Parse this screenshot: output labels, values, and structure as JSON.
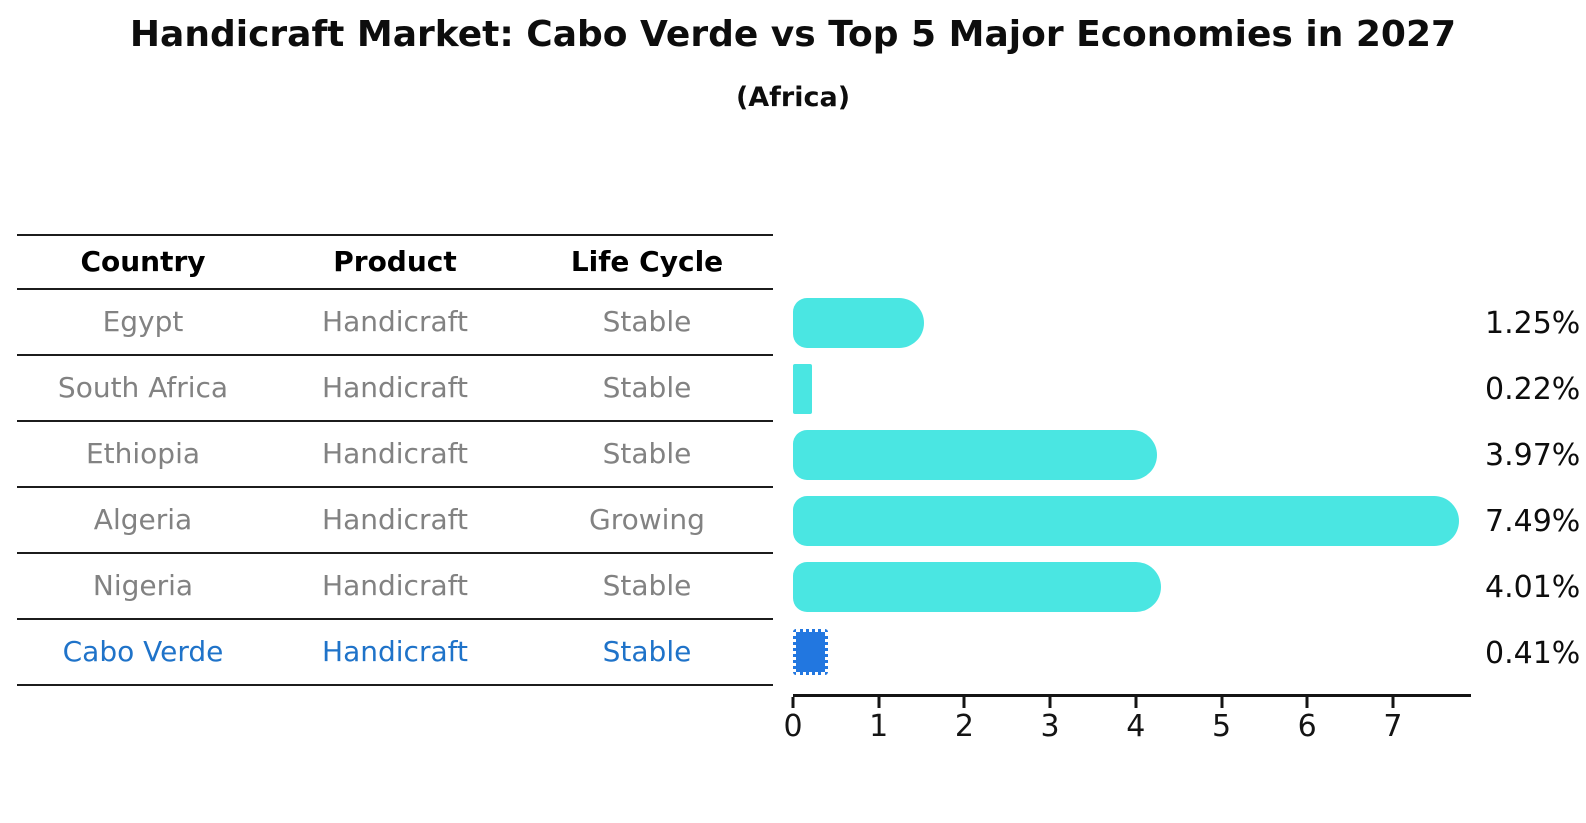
{
  "title": "Handicraft Market: Cabo Verde vs Top 5 Major Economies in 2027",
  "subtitle": "(Africa)",
  "table": {
    "headers": [
      "Country",
      "Product",
      "Life Cycle"
    ]
  },
  "chart_data": {
    "type": "bar",
    "orientation": "horizontal",
    "title": "Handicraft Market: Cabo Verde vs Top 5 Major Economies in 2027 (Africa)",
    "xlabel": "",
    "ylabel": "",
    "grid": false,
    "legend": false,
    "xlim": [
      0,
      7.87
    ],
    "xticks": [
      "0",
      "1",
      "2",
      "3",
      "4",
      "5",
      "6",
      "7"
    ],
    "categories": [
      "Egypt",
      "South Africa",
      "Ethiopia",
      "Algeria",
      "Nigeria",
      "Cabo Verde"
    ],
    "values": [
      1.25,
      0.22,
      3.97,
      7.49,
      4.01,
      0.41
    ],
    "value_labels": [
      "1.25%",
      "0.22%",
      "3.97%",
      "7.49%",
      "4.01%",
      "0.41%"
    ],
    "rows": [
      {
        "country": "Egypt",
        "product": "Handicraft",
        "life_cycle": "Stable",
        "value": 1.25,
        "value_label": "1.25%",
        "highlight": false
      },
      {
        "country": "South Africa",
        "product": "Handicraft",
        "life_cycle": "Stable",
        "value": 0.22,
        "value_label": "0.22%",
        "highlight": false
      },
      {
        "country": "Ethiopia",
        "product": "Handicraft",
        "life_cycle": "Stable",
        "value": 3.97,
        "value_label": "3.97%",
        "highlight": false
      },
      {
        "country": "Algeria",
        "product": "Handicraft",
        "life_cycle": "Growing",
        "value": 7.49,
        "value_label": "7.49%",
        "highlight": false
      },
      {
        "country": "Nigeria",
        "product": "Handicraft",
        "life_cycle": "Stable",
        "value": 4.01,
        "value_label": "4.01%",
        "highlight": false
      },
      {
        "country": "Cabo Verde",
        "product": "Handicraft",
        "life_cycle": "Stable",
        "value": 0.41,
        "value_label": "0.41%",
        "highlight": true
      }
    ],
    "colors": {
      "bar": "#4ae6e2",
      "highlight_bar": "#2277e0",
      "highlight_text": "#1f73c9",
      "row_text": "#828282",
      "header_text": "#000000",
      "axis": "#141414"
    }
  }
}
